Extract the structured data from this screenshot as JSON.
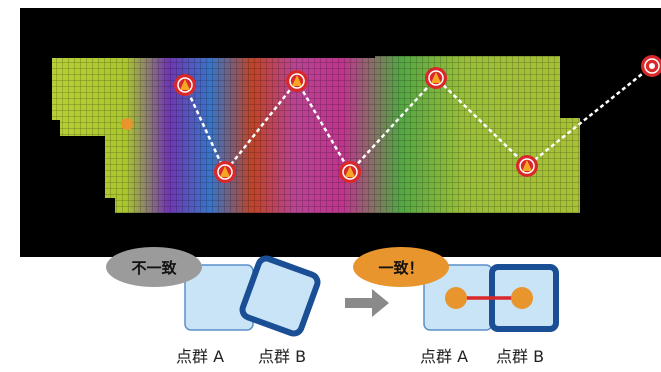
{
  "bubbles": {
    "mismatch": "不一致",
    "match": "一致！"
  },
  "labels": {
    "left_a": "点群 A",
    "left_b": "点群 B",
    "right_a": "点群 A",
    "right_b": "点群 B"
  },
  "colors": {
    "background": "#000000",
    "marker": "#d9282a",
    "path": "#ffffff",
    "cloud_a_fill": "#c8e4f6",
    "cloud_a_stroke": "#5b8fc9",
    "cloud_b_stroke": "#1a4f96",
    "match_dot": "#e8952d",
    "link": "#d9282a",
    "arrow": "#8a8a8a"
  }
}
